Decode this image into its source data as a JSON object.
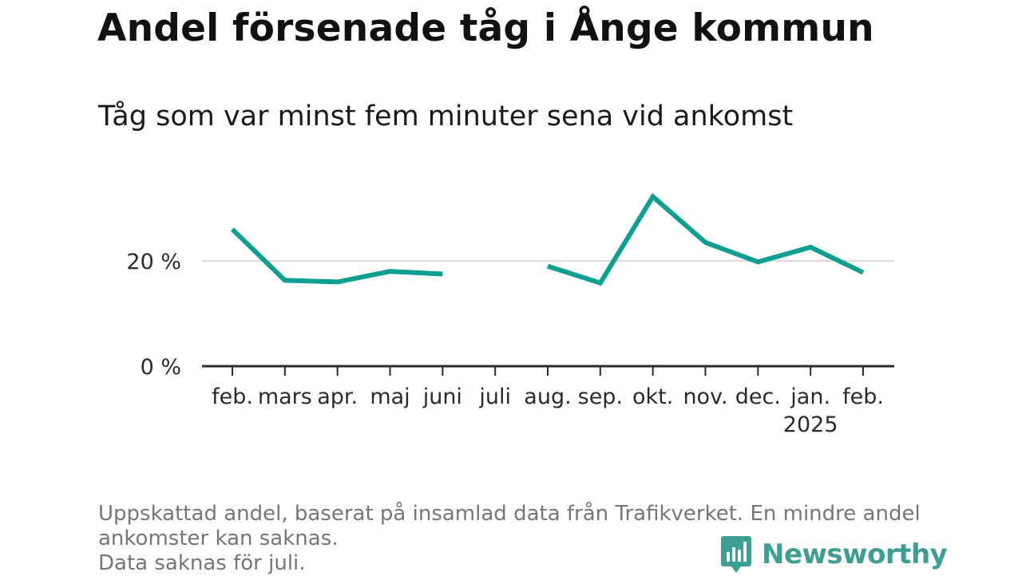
{
  "colors": {
    "line": "#0d9f92",
    "gridline": "#d9d9d9",
    "axis": "#2b2b2b",
    "brand": "#3d9e93"
  },
  "chart_data": {
    "type": "line",
    "title": "Andel försenade tåg i Ånge kommun",
    "subtitle": "Tåg som var minst fem minuter sena vid ankomst",
    "categories": [
      "feb.",
      "mars",
      "apr.",
      "maj",
      "juni",
      "juli",
      "aug.",
      "sep.",
      "okt.",
      "nov.",
      "dec.",
      "jan.",
      "feb."
    ],
    "year_labels": [
      "",
      "",
      "",
      "",
      "",
      "",
      "",
      "",
      "",
      "",
      "",
      "2025",
      ""
    ],
    "series": [
      {
        "values": [
          26,
          16.3,
          16,
          18,
          17.5,
          null,
          19,
          15.8,
          32.2,
          23.5,
          19.8,
          22.6,
          17.8
        ]
      }
    ],
    "y_ticks": [
      0,
      20
    ],
    "y_tick_labels": [
      "0 %",
      "20 %"
    ],
    "ylim": [
      0,
      33
    ],
    "grid": true,
    "legend": "none"
  },
  "footnote": {
    "lines": [
      "Uppskattad andel, baserat på insamlad data från Trafikverket. En mindre andel",
      "ankomster kan saknas.",
      "Data saknas för juli."
    ]
  },
  "brand": {
    "name": "Newsworthy",
    "icon": "newsworthy-bar-chart-icon"
  }
}
